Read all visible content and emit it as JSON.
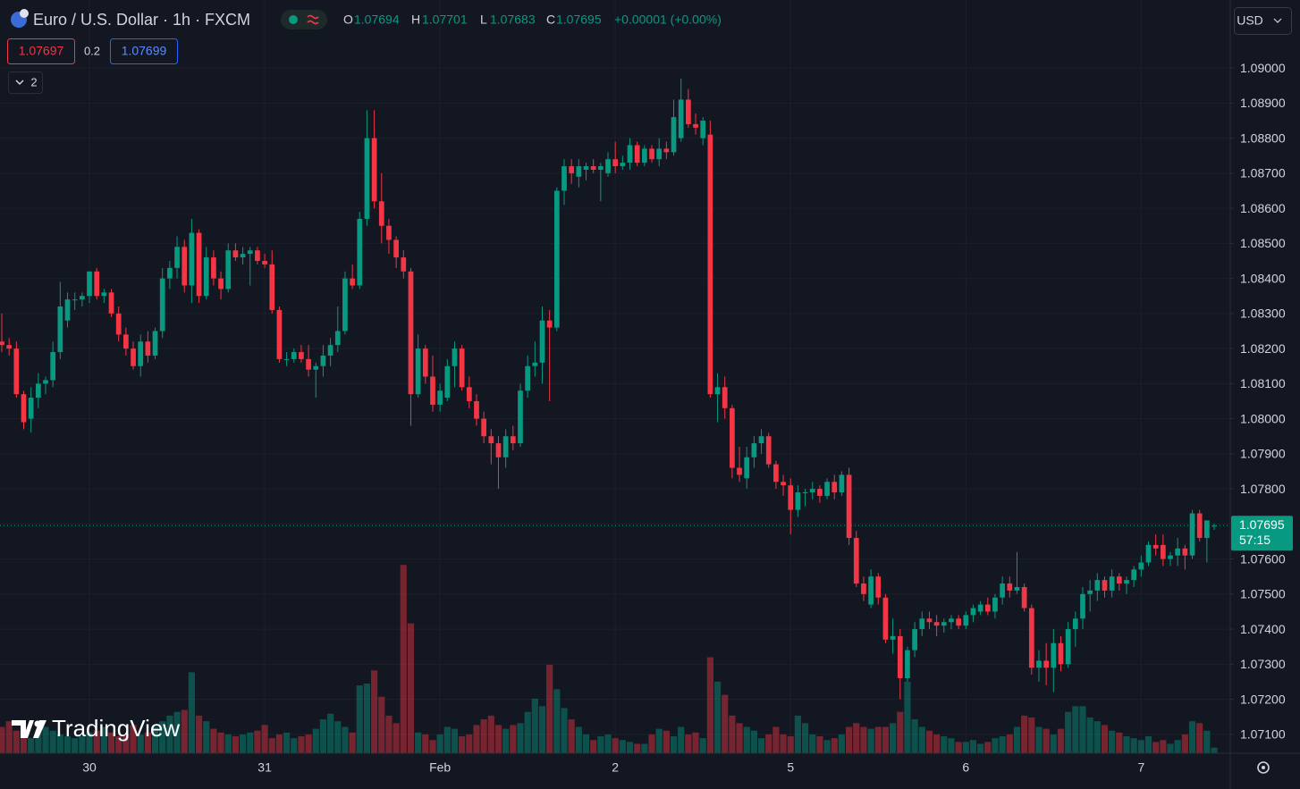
{
  "header": {
    "symbol": "Euro / U.S. Dollar · 1h · FXCM",
    "open_label": "O",
    "open": "1.07694",
    "high_label": "H",
    "high": "1.07701",
    "low_label": "L",
    "low": "1.07683",
    "close_label": "C",
    "close": "1.07695",
    "change": "+0.00001 (+0.00%)",
    "bid": "1.07697",
    "spread": "0.2",
    "ask": "1.07699",
    "indicators": "2",
    "currency": "USD",
    "countdown": "57:15",
    "watermark": "TradingView"
  },
  "chart_data": {
    "type": "candlestick",
    "up_color": "#089981",
    "down_color": "#f23645",
    "grid": true,
    "ylim": [
      1.07046,
      1.09194
    ],
    "yticks": [
      {
        "value": 1.09,
        "label": "1.09000"
      },
      {
        "value": 1.089,
        "label": "1.08900"
      },
      {
        "value": 1.088,
        "label": "1.08800"
      },
      {
        "value": 1.087,
        "label": "1.08700"
      },
      {
        "value": 1.086,
        "label": "1.08600"
      },
      {
        "value": 1.085,
        "label": "1.08500"
      },
      {
        "value": 1.084,
        "label": "1.08400"
      },
      {
        "value": 1.083,
        "label": "1.08300"
      },
      {
        "value": 1.082,
        "label": "1.08200"
      },
      {
        "value": 1.081,
        "label": "1.08100"
      },
      {
        "value": 1.08,
        "label": "1.08000"
      },
      {
        "value": 1.079,
        "label": "1.07900"
      },
      {
        "value": 1.078,
        "label": "1.07800"
      },
      {
        "value": 1.077,
        "label": "1.07700"
      },
      {
        "value": 1.076,
        "label": "1.07600"
      },
      {
        "value": 1.075,
        "label": "1.07500"
      },
      {
        "value": 1.074,
        "label": "1.07400"
      },
      {
        "value": 1.073,
        "label": "1.07300"
      },
      {
        "value": 1.072,
        "label": "1.07200"
      },
      {
        "value": 1.071,
        "label": "1.07100"
      }
    ],
    "xlim": [
      -0.245,
      168.2
    ],
    "xticks": [
      {
        "value": 12,
        "label": "30"
      },
      {
        "value": 36,
        "label": "31"
      },
      {
        "value": 60,
        "label": "Feb"
      },
      {
        "value": 84,
        "label": "2"
      },
      {
        "value": 108,
        "label": "5"
      },
      {
        "value": 132,
        "label": "6"
      },
      {
        "value": 156,
        "label": "7"
      }
    ],
    "last_price": 1.07695,
    "vlim": [
      0,
      400
    ],
    "ohlc": [
      [
        1.0822,
        1.083,
        1.0819,
        1.0821
      ],
      [
        1.0821,
        1.0823,
        1.0818,
        1.082
      ],
      [
        1.082,
        1.0822,
        1.0806,
        1.0807
      ],
      [
        1.0807,
        1.0808,
        1.0797,
        1.0799
      ],
      [
        1.08,
        1.0809,
        1.0796,
        1.0806
      ],
      [
        1.0806,
        1.0813,
        1.0803,
        1.081
      ],
      [
        1.081,
        1.0812,
        1.0807,
        1.0811
      ],
      [
        1.0811,
        1.0822,
        1.0809,
        1.0819
      ],
      [
        1.0819,
        1.0839,
        1.0817,
        1.0832
      ],
      [
        1.0828,
        1.0836,
        1.0826,
        1.0834
      ],
      [
        1.0834,
        1.0836,
        1.0831,
        1.0834
      ],
      [
        1.0834,
        1.0836,
        1.0832,
        1.0835
      ],
      [
        1.0835,
        1.0842,
        1.0833,
        1.0842
      ],
      [
        1.0842,
        1.0843,
        1.0834,
        1.0835
      ],
      [
        1.0835,
        1.0837,
        1.0833,
        1.0836
      ],
      [
        1.0836,
        1.0837,
        1.0829,
        1.083
      ],
      [
        1.083,
        1.0832,
        1.0822,
        1.0824
      ],
      [
        1.0824,
        1.0826,
        1.0818,
        1.082
      ],
      [
        1.082,
        1.0822,
        1.0814,
        1.0815
      ],
      [
        1.0815,
        1.0824,
        1.0812,
        1.0822
      ],
      [
        1.0822,
        1.0825,
        1.0816,
        1.0818
      ],
      [
        1.0818,
        1.0826,
        1.0817,
        1.0825
      ],
      [
        1.0825,
        1.0843,
        1.0823,
        1.084
      ],
      [
        1.084,
        1.0845,
        1.0837,
        1.0843
      ],
      [
        1.0843,
        1.0852,
        1.084,
        1.0849
      ],
      [
        1.0849,
        1.0851,
        1.0836,
        1.0838
      ],
      [
        1.0838,
        1.0857,
        1.0833,
        1.0853
      ],
      [
        1.0853,
        1.0854,
        1.0833,
        1.0835
      ],
      [
        1.0835,
        1.0849,
        1.0834,
        1.0846
      ],
      [
        1.0846,
        1.0848,
        1.0838,
        1.084
      ],
      [
        1.084,
        1.0842,
        1.0834,
        1.0837
      ],
      [
        1.0837,
        1.085,
        1.0836,
        1.0848
      ],
      [
        1.0848,
        1.085,
        1.0845,
        1.0846
      ],
      [
        1.0846,
        1.0849,
        1.0844,
        1.0847
      ],
      [
        1.0847,
        1.0849,
        1.0838,
        1.0848
      ],
      [
        1.0848,
        1.0849,
        1.0844,
        1.0845
      ],
      [
        1.0845,
        1.0847,
        1.0843,
        1.0844
      ],
      [
        1.0844,
        1.0848,
        1.083,
        1.0831
      ],
      [
        1.0831,
        1.0832,
        1.0816,
        1.0817
      ],
      [
        1.0817,
        1.0819,
        1.0815,
        1.0817
      ],
      [
        1.0817,
        1.082,
        1.0816,
        1.0819
      ],
      [
        1.0819,
        1.0821,
        1.0816,
        1.0817
      ],
      [
        1.0817,
        1.0821,
        1.0812,
        1.0814
      ],
      [
        1.0814,
        1.0816,
        1.0806,
        1.0815
      ],
      [
        1.0815,
        1.0821,
        1.0812,
        1.0818
      ],
      [
        1.0818,
        1.0823,
        1.0815,
        1.0821
      ],
      [
        1.0821,
        1.0832,
        1.0819,
        1.0825
      ],
      [
        1.0825,
        1.0842,
        1.0824,
        1.084
      ],
      [
        1.084,
        1.0844,
        1.0837,
        1.0838
      ],
      [
        1.0838,
        1.0859,
        1.0837,
        1.0857
      ],
      [
        1.0857,
        1.0888,
        1.0855,
        1.088
      ],
      [
        1.088,
        1.0888,
        1.086,
        1.0862
      ],
      [
        1.0862,
        1.087,
        1.085,
        1.0855
      ],
      [
        1.0855,
        1.0857,
        1.0847,
        1.0851
      ],
      [
        1.0851,
        1.0852,
        1.0843,
        1.0846
      ],
      [
        1.0846,
        1.0848,
        1.084,
        1.0842
      ],
      [
        1.0842,
        1.0843,
        1.0798,
        1.0807
      ],
      [
        1.0807,
        1.0824,
        1.0806,
        1.082
      ],
      [
        1.082,
        1.0821,
        1.081,
        1.0812
      ],
      [
        1.0812,
        1.0818,
        1.0802,
        1.0804
      ],
      [
        1.0804,
        1.081,
        1.0802,
        1.0808
      ],
      [
        1.0806,
        1.0817,
        1.0805,
        1.0815
      ],
      [
        1.0815,
        1.0822,
        1.0809,
        1.082
      ],
      [
        1.082,
        1.0821,
        1.0808,
        1.0809
      ],
      [
        1.0809,
        1.0812,
        1.0803,
        1.0805
      ],
      [
        1.0805,
        1.0807,
        1.0798,
        1.08
      ],
      [
        1.08,
        1.0802,
        1.0793,
        1.0795
      ],
      [
        1.0795,
        1.0797,
        1.0787,
        1.0793
      ],
      [
        1.0793,
        1.0795,
        1.078,
        1.0789
      ],
      [
        1.0789,
        1.0797,
        1.0786,
        1.0795
      ],
      [
        1.0795,
        1.0798,
        1.0791,
        1.0793
      ],
      [
        1.0793,
        1.081,
        1.0792,
        1.0808
      ],
      [
        1.0808,
        1.0818,
        1.0806,
        1.0815
      ],
      [
        1.0815,
        1.0822,
        1.0812,
        1.0816
      ],
      [
        1.0816,
        1.0832,
        1.081,
        1.0828
      ],
      [
        1.0828,
        1.0831,
        1.0805,
        1.0826
      ],
      [
        1.0826,
        1.0866,
        1.0825,
        1.0865
      ],
      [
        1.0865,
        1.0874,
        1.0861,
        1.0872
      ],
      [
        1.0872,
        1.0874,
        1.0867,
        1.087
      ],
      [
        1.0869,
        1.0874,
        1.0866,
        1.0872
      ],
      [
        1.0871,
        1.0873,
        1.0868,
        1.0872
      ],
      [
        1.0872,
        1.0874,
        1.087,
        1.0871
      ],
      [
        1.0871,
        1.0873,
        1.0862,
        1.0872
      ],
      [
        1.087,
        1.0876,
        1.0869,
        1.0874
      ],
      [
        1.0874,
        1.0879,
        1.087,
        1.0872
      ],
      [
        1.0872,
        1.0875,
        1.0871,
        1.0873
      ],
      [
        1.0873,
        1.088,
        1.0871,
        1.0878
      ],
      [
        1.0878,
        1.0879,
        1.0872,
        1.0873
      ],
      [
        1.0873,
        1.0878,
        1.0872,
        1.0877
      ],
      [
        1.0877,
        1.0878,
        1.0873,
        1.0874
      ],
      [
        1.0874,
        1.088,
        1.0872,
        1.0877
      ],
      [
        1.0877,
        1.0879,
        1.0874,
        1.0876
      ],
      [
        1.0876,
        1.0891,
        1.0875,
        1.0886
      ],
      [
        1.088,
        1.0897,
        1.0879,
        1.0891
      ],
      [
        1.0891,
        1.0894,
        1.0883,
        1.0884
      ],
      [
        1.0884,
        1.0887,
        1.0881,
        1.0883
      ],
      [
        1.088,
        1.0886,
        1.0878,
        1.0885
      ],
      [
        1.0881,
        1.0885,
        1.0806,
        1.0807
      ],
      [
        1.0807,
        1.0813,
        1.0799,
        1.0809
      ],
      [
        1.0809,
        1.0812,
        1.08,
        1.0803
      ],
      [
        1.0803,
        1.0804,
        1.0783,
        1.0786
      ],
      [
        1.0786,
        1.0792,
        1.0782,
        1.0784
      ],
      [
        1.0783,
        1.0792,
        1.078,
        1.0789
      ],
      [
        1.0789,
        1.0795,
        1.0786,
        1.0793
      ],
      [
        1.0793,
        1.0797,
        1.079,
        1.0795
      ],
      [
        1.0795,
        1.0796,
        1.0786,
        1.0787
      ],
      [
        1.0787,
        1.0788,
        1.078,
        1.0782
      ],
      [
        1.0782,
        1.0784,
        1.0778,
        1.0781
      ],
      [
        1.0781,
        1.0783,
        1.0767,
        1.0774
      ],
      [
        1.0774,
        1.0781,
        1.0772,
        1.0779
      ],
      [
        1.0779,
        1.078,
        1.0775,
        1.0779
      ],
      [
        1.0779,
        1.0782,
        1.0777,
        1.078
      ],
      [
        1.078,
        1.0781,
        1.0776,
        1.0778
      ],
      [
        1.0778,
        1.0783,
        1.0777,
        1.0782
      ],
      [
        1.0782,
        1.0784,
        1.0777,
        1.0779
      ],
      [
        1.0779,
        1.0785,
        1.0778,
        1.0784
      ],
      [
        1.0784,
        1.0786,
        1.0764,
        1.0766
      ],
      [
        1.0766,
        1.0768,
        1.0752,
        1.0753
      ],
      [
        1.0753,
        1.0755,
        1.0748,
        1.075
      ],
      [
        1.0747,
        1.0757,
        1.0746,
        1.0755
      ],
      [
        1.0755,
        1.0756,
        1.0747,
        1.0749
      ],
      [
        1.0749,
        1.075,
        1.0736,
        1.0737
      ],
      [
        1.0737,
        1.0743,
        1.0733,
        1.0738
      ],
      [
        1.0738,
        1.074,
        1.072,
        1.0726
      ],
      [
        1.0726,
        1.0735,
        1.0725,
        1.0734
      ],
      [
        1.0734,
        1.0742,
        1.0732,
        1.074
      ],
      [
        1.074,
        1.0745,
        1.0738,
        1.0743
      ],
      [
        1.0743,
        1.0745,
        1.074,
        1.0742
      ],
      [
        1.0742,
        1.0744,
        1.0738,
        1.0741
      ],
      [
        1.0741,
        1.0743,
        1.0739,
        1.0742
      ],
      [
        1.0742,
        1.0744,
        1.074,
        1.0743
      ],
      [
        1.0743,
        1.0744,
        1.074,
        1.0741
      ],
      [
        1.0741,
        1.0745,
        1.074,
        1.0744
      ],
      [
        1.0744,
        1.0747,
        1.0742,
        1.0746
      ],
      [
        1.0745,
        1.0748,
        1.0744,
        1.0747
      ],
      [
        1.0747,
        1.0749,
        1.0744,
        1.0745
      ],
      [
        1.0745,
        1.075,
        1.0743,
        1.0749
      ],
      [
        1.0749,
        1.0755,
        1.0747,
        1.0753
      ],
      [
        1.0753,
        1.0755,
        1.0749,
        1.0751
      ],
      [
        1.0751,
        1.0762,
        1.075,
        1.0752
      ],
      [
        1.0752,
        1.0753,
        1.0745,
        1.0746
      ],
      [
        1.0746,
        1.0747,
        1.0727,
        1.0729
      ],
      [
        1.0729,
        1.0734,
        1.0725,
        1.0731
      ],
      [
        1.0731,
        1.0736,
        1.0724,
        1.0729
      ],
      [
        1.0729,
        1.074,
        1.0722,
        1.0736
      ],
      [
        1.0736,
        1.0738,
        1.0728,
        1.073
      ],
      [
        1.073,
        1.0742,
        1.0729,
        1.074
      ],
      [
        1.074,
        1.0745,
        1.0735,
        1.0743
      ],
      [
        1.0743,
        1.0752,
        1.074,
        1.075
      ],
      [
        1.075,
        1.0754,
        1.0745,
        1.0751
      ],
      [
        1.0751,
        1.0756,
        1.0748,
        1.0754
      ],
      [
        1.0754,
        1.0755,
        1.0749,
        1.0751
      ],
      [
        1.0751,
        1.0757,
        1.0749,
        1.0755
      ],
      [
        1.0755,
        1.0756,
        1.0751,
        1.0753
      ],
      [
        1.0753,
        1.0755,
        1.075,
        1.0754
      ],
      [
        1.0754,
        1.0758,
        1.0752,
        1.0757
      ],
      [
        1.0757,
        1.0761,
        1.0755,
        1.0759
      ],
      [
        1.0759,
        1.0765,
        1.0758,
        1.0764
      ],
      [
        1.0764,
        1.0767,
        1.0761,
        1.0763
      ],
      [
        1.0764,
        1.0767,
        1.0758,
        1.076
      ],
      [
        1.076,
        1.0762,
        1.0758,
        1.0761
      ],
      [
        1.0761,
        1.0766,
        1.0758,
        1.0763
      ],
      [
        1.0763,
        1.0764,
        1.0757,
        1.0761
      ],
      [
        1.0761,
        1.0774,
        1.076,
        1.0773
      ],
      [
        1.0773,
        1.0774,
        1.0765,
        1.0766
      ],
      [
        1.0766,
        1.0771,
        1.0759,
        1.0771
      ],
      [
        1.07694,
        1.07701,
        1.07683,
        1.07695
      ]
    ],
    "volume": [
      14,
      17,
      12,
      10,
      8,
      12,
      14,
      12,
      10,
      9,
      8,
      9,
      11,
      12,
      14,
      11,
      9,
      10,
      15,
      10,
      11,
      14,
      17,
      20,
      22,
      23,
      43,
      20,
      17,
      13,
      11,
      10,
      9,
      10,
      11,
      12,
      15,
      8,
      10,
      11,
      8,
      9,
      10,
      13,
      18,
      21,
      17,
      14,
      11,
      36,
      37,
      44,
      30,
      20,
      16,
      100,
      69,
      11,
      10,
      7,
      10,
      14,
      13,
      9,
      10,
      15,
      18,
      20,
      15,
      13,
      15,
      16,
      22,
      29,
      25,
      47,
      34,
      24,
      18,
      14,
      10,
      7,
      9,
      10,
      8,
      7,
      6,
      5,
      5,
      10,
      13,
      12,
      9,
      14,
      10,
      11,
      8,
      51,
      38,
      31,
      20,
      16,
      14,
      12,
      8,
      10,
      14,
      10,
      9,
      20,
      16,
      10,
      9,
      7,
      8,
      10,
      14,
      16,
      14,
      13,
      14,
      14,
      16,
      22,
      38,
      18,
      14,
      12,
      10,
      9,
      8,
      6,
      6,
      7,
      5,
      6,
      8,
      9,
      10,
      14,
      20,
      19,
      14,
      13,
      10,
      13,
      22,
      25,
      25,
      19,
      17,
      15,
      12,
      11,
      9,
      8,
      7,
      9,
      6,
      7,
      5,
      7,
      10,
      17,
      16,
      12,
      3
    ]
  }
}
